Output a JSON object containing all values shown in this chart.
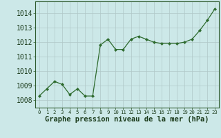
{
  "x": [
    0,
    1,
    2,
    3,
    4,
    5,
    6,
    7,
    8,
    9,
    10,
    11,
    12,
    13,
    14,
    15,
    16,
    17,
    18,
    19,
    20,
    21,
    22,
    23
  ],
  "y": [
    1008.3,
    1008.8,
    1009.3,
    1009.1,
    1008.4,
    1008.8,
    1008.3,
    1008.3,
    1011.8,
    1012.2,
    1011.5,
    1011.5,
    1012.2,
    1012.4,
    1012.2,
    1012.0,
    1011.9,
    1011.9,
    1011.9,
    1012.0,
    1012.2,
    1012.8,
    1013.5,
    1014.3
  ],
  "line_color": "#2d6a2d",
  "marker": "D",
  "marker_size": 2.2,
  "bg_color": "#cce8e8",
  "grid_color": "#b0c8c8",
  "xlabel": "Graphe pression niveau de la mer (hPa)",
  "xlabel_fontsize": 7.5,
  "ylabel_fontsize": 7,
  "xtick_fontsize": 5.2,
  "ytick_vals": [
    1008,
    1009,
    1010,
    1011,
    1012,
    1013,
    1014
  ],
  "ytick_labels": [
    "1008",
    "1009",
    "1010",
    "1011",
    "1012",
    "1013",
    "1014"
  ],
  "ylim": [
    1007.5,
    1014.8
  ],
  "xlim": [
    -0.5,
    23.5
  ],
  "xtick_labels": [
    "0",
    "1",
    "2",
    "3",
    "4",
    "5",
    "6",
    "7",
    "8",
    "9",
    "10",
    "11",
    "12",
    "13",
    "14",
    "15",
    "16",
    "17",
    "18",
    "19",
    "20",
    "21",
    "22",
    "23"
  ]
}
